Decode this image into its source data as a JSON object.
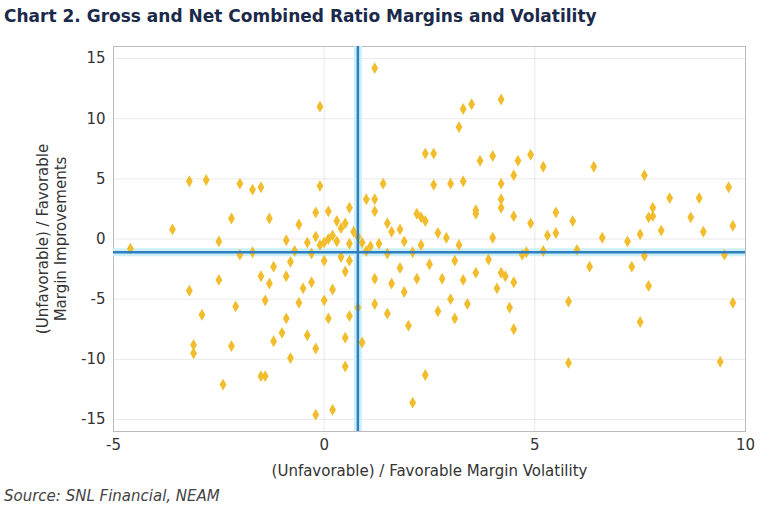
{
  "chart_data": {
    "type": "scatter",
    "title": "Chart 2. Gross and Net Combined Ratio Margins and Volatility",
    "x_label": "(Unfavorable) / Favorable Margin Volatility",
    "y_label": "(Unfavorable) / Favorable Margin Improvements",
    "caption": "Source: SNL Financial, NEAM",
    "xlim": [
      -5,
      10
    ],
    "ylim": [
      -16,
      16
    ],
    "xticks": [
      -5,
      0,
      5,
      10
    ],
    "yticks": [
      -15,
      -10,
      -5,
      0,
      5,
      10,
      15
    ],
    "grid": true,
    "color": "#f2bd2c",
    "marker": "diamond",
    "reference_lines": {
      "x": 0.8,
      "y": -1.1,
      "color": "#2f7fc1"
    },
    "x": [
      1.2,
      -0.1,
      3.3,
      3.5,
      4.2,
      3.2,
      3.7,
      4.0,
      4.6,
      4.9,
      5.2,
      6.4,
      7.6,
      9.6,
      2.4,
      2.6,
      3.0,
      3.3,
      2.6,
      4.2,
      4.5,
      4.2,
      4.2,
      3.6,
      3.6,
      4.5,
      4.9,
      5.5,
      5.5,
      5.9,
      7.8,
      7.8,
      8.0,
      8.2,
      8.9,
      8.7,
      9.0,
      9.7,
      7.7,
      7.5,
      6.6,
      7.2,
      2.3,
      2.2,
      2.4,
      1.0,
      1.2,
      1.4,
      1.2,
      1.6,
      1.9,
      -0.1,
      -0.2,
      0.1,
      -0.6,
      -1.3,
      -1.5,
      -2.0,
      -2.2,
      -2.8,
      -3.2,
      -3.6,
      -2.5,
      -4.6,
      -1.7,
      0.6,
      0.3,
      0.5,
      0.4,
      0.0,
      0.1,
      -0.1,
      0.2,
      0.3,
      -0.2,
      0.6,
      0.8,
      0.9,
      1.0,
      1.1,
      1.3,
      1.5,
      1.8,
      2.1,
      0.7,
      -0.4,
      -0.7,
      -0.9,
      -0.3,
      0.0,
      0.4,
      0.6,
      0.5,
      -0.2,
      0.2,
      2.1,
      -2.4,
      -1.4,
      -1.5,
      2.4,
      0.5,
      -3.1,
      -3.1,
      -2.2,
      -0.8,
      0.9,
      0.5,
      0.6,
      -1.2,
      -0.4,
      -0.9,
      1.5,
      2.0,
      3.1,
      2.7,
      3.0,
      3.4,
      4.3,
      4.5,
      4.4,
      4.5,
      5.8,
      5.8,
      7.5,
      9.4,
      9.7,
      7.7,
      9.5,
      7.6,
      7.3,
      6.3,
      5.2,
      4.7,
      4.1,
      3.6,
      3.1,
      2.8,
      2.5,
      2.2,
      1.9,
      1.6,
      1.2,
      1.2,
      0.8,
      0.2,
      0.0,
      -0.3,
      -0.5,
      -0.9,
      -1.3,
      -1.5,
      -1.4,
      -2.1,
      -2.9,
      -3.2,
      -2.5,
      -2.0,
      -1.2,
      -0.8,
      -1.7,
      -1.0,
      0.1,
      -0.6,
      -0.2,
      3.3,
      3.9,
      4.2,
      4.8,
      6.0,
      5.3,
      4.0,
      2.9,
      3.2,
      2.7,
      2.3,
      1.8,
      1.5
    ],
    "values": [
      14.2,
      11.0,
      10.8,
      11.2,
      11.6,
      9.3,
      6.5,
      6.9,
      6.5,
      7.0,
      6.0,
      6.0,
      5.3,
      4.3,
      7.1,
      7.1,
      4.6,
      4.8,
      4.5,
      4.6,
      5.3,
      3.3,
      2.6,
      2.4,
      2.1,
      1.9,
      1.3,
      2.2,
      0.5,
      1.5,
      2.6,
      1.9,
      0.7,
      3.4,
      3.4,
      1.8,
      0.6,
      1.1,
      1.8,
      0.4,
      0.1,
      -0.2,
      1.8,
      2.1,
      1.5,
      3.3,
      3.3,
      4.6,
      2.3,
      0.6,
      -0.2,
      4.4,
      2.2,
      2.3,
      1.2,
      1.7,
      4.3,
      4.6,
      1.7,
      4.9,
      4.8,
      0.8,
      -0.2,
      -0.8,
      4.1,
      2.6,
      1.5,
      1.3,
      0.9,
      -0.3,
      0.0,
      -0.5,
      0.3,
      -0.2,
      0.2,
      -0.4,
      0.2,
      -0.3,
      -1.0,
      -0.6,
      -0.4,
      -1.2,
      -2.4,
      -1.1,
      0.6,
      -0.3,
      -1.0,
      -0.1,
      -1.2,
      -1.8,
      -1.5,
      -1.8,
      -2.7,
      -14.6,
      -14.2,
      -13.6,
      -12.1,
      -11.4,
      -11.4,
      -11.3,
      -10.6,
      -9.5,
      -8.8,
      -8.9,
      -9.9,
      -8.6,
      -8.2,
      -6.4,
      -8.5,
      -8.0,
      -6.6,
      -6.2,
      -7.2,
      -6.6,
      -6.0,
      -5.0,
      -5.4,
      -3.1,
      -3.6,
      -5.7,
      -7.5,
      -5.2,
      -10.3,
      -6.9,
      -10.2,
      -5.3,
      -3.9,
      -1.3,
      -1.4,
      -2.3,
      -2.3,
      -1.0,
      -1.3,
      -4.1,
      -2.8,
      -1.8,
      -3.3,
      -2.1,
      -3.3,
      -4.4,
      -3.7,
      -3.3,
      -5.4,
      -5.7,
      -4.2,
      -5.1,
      -3.6,
      -4.1,
      -3.1,
      -3.7,
      -3.1,
      -5.1,
      -5.6,
      -6.3,
      -4.3,
      -3.4,
      -1.3,
      -2.3,
      -1.9,
      -1.1,
      -7.8,
      -6.6,
      -5.3,
      -9.1,
      -3.4,
      -1.7,
      -2.8,
      -1.1,
      -0.9,
      0.3,
      0.1,
      0.1,
      -0.5,
      0.5,
      -0.5,
      0.8,
      1.3
    ]
  }
}
